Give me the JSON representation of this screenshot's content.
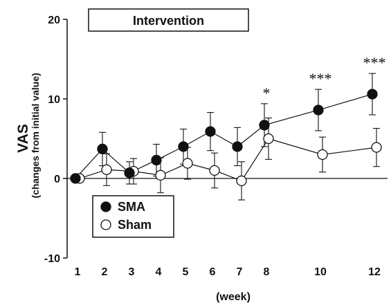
{
  "chart_data": {
    "type": "line",
    "ylabel": "VAS",
    "ylabel_sub": "(changes from initial value)",
    "xlabel": "(week)",
    "x": [
      1,
      2,
      3,
      4,
      5,
      6,
      7,
      8,
      10,
      12
    ],
    "x_tick_labels": [
      "1",
      "2",
      "3",
      "4",
      "5",
      "6",
      "7",
      "8",
      "10",
      "12"
    ],
    "ylim": [
      -10,
      20
    ],
    "y_ticks": [
      -10,
      0,
      10,
      20
    ],
    "y_tick_labels": [
      "-10",
      "0",
      "10",
      "20"
    ],
    "intervention_label": "Intervention",
    "intervention_range": [
      2,
      7
    ],
    "legend_position": "bottom-left",
    "series": [
      {
        "name": "SMA",
        "marker": "filled-circle",
        "color": "#111111",
        "values": [
          0,
          3.7,
          0.7,
          2.3,
          4.0,
          5.9,
          4.0,
          6.7,
          8.6,
          10.6
        ],
        "errors": [
          0,
          2.1,
          1.4,
          2.0,
          2.2,
          2.4,
          2.4,
          2.7,
          2.6,
          2.6
        ]
      },
      {
        "name": "Sham",
        "marker": "open-circle",
        "color": "#111111",
        "values": [
          0,
          1.1,
          0.9,
          0.4,
          1.9,
          1.0,
          -0.3,
          5.0,
          3.0,
          3.9
        ],
        "errors": [
          0,
          2.0,
          1.6,
          2.2,
          2.0,
          2.2,
          2.4,
          2.6,
          2.2,
          2.4
        ]
      }
    ],
    "annotations": [
      {
        "x": 8,
        "text": "*"
      },
      {
        "x": 10,
        "text": "***"
      },
      {
        "x": 12,
        "text": "***"
      }
    ]
  }
}
